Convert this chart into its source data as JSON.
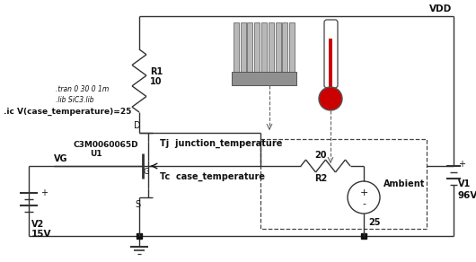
{
  "bg_color": "#ffffff",
  "vdd_label": "VDD",
  "v1_label": "V1",
  "v1_value": "96V",
  "v2_label": "V2",
  "v2_value": "15V",
  "vg_label": "VG",
  "r1_label": "R1",
  "r1_value": "10",
  "r2_label": "R2",
  "r2_value": "20",
  "mosfet_label": "C3M0060065D",
  "mosfet_ref": "U1",
  "tj_label": "Tj  junction_temperature",
  "tc_label": "Tc  case_temperature",
  "ambient_label": "Ambient",
  "ambient_value": "25",
  "spice_cmd1": ".tran 0 30 0 1m",
  "spice_cmd2": ".lib SiC3.lib",
  "spice_cmd3": ".ic V(case_temperature)=25",
  "d_label": "D",
  "g_label": "G",
  "s_label": "S",
  "plus_label": "+",
  "minus_label": "-"
}
